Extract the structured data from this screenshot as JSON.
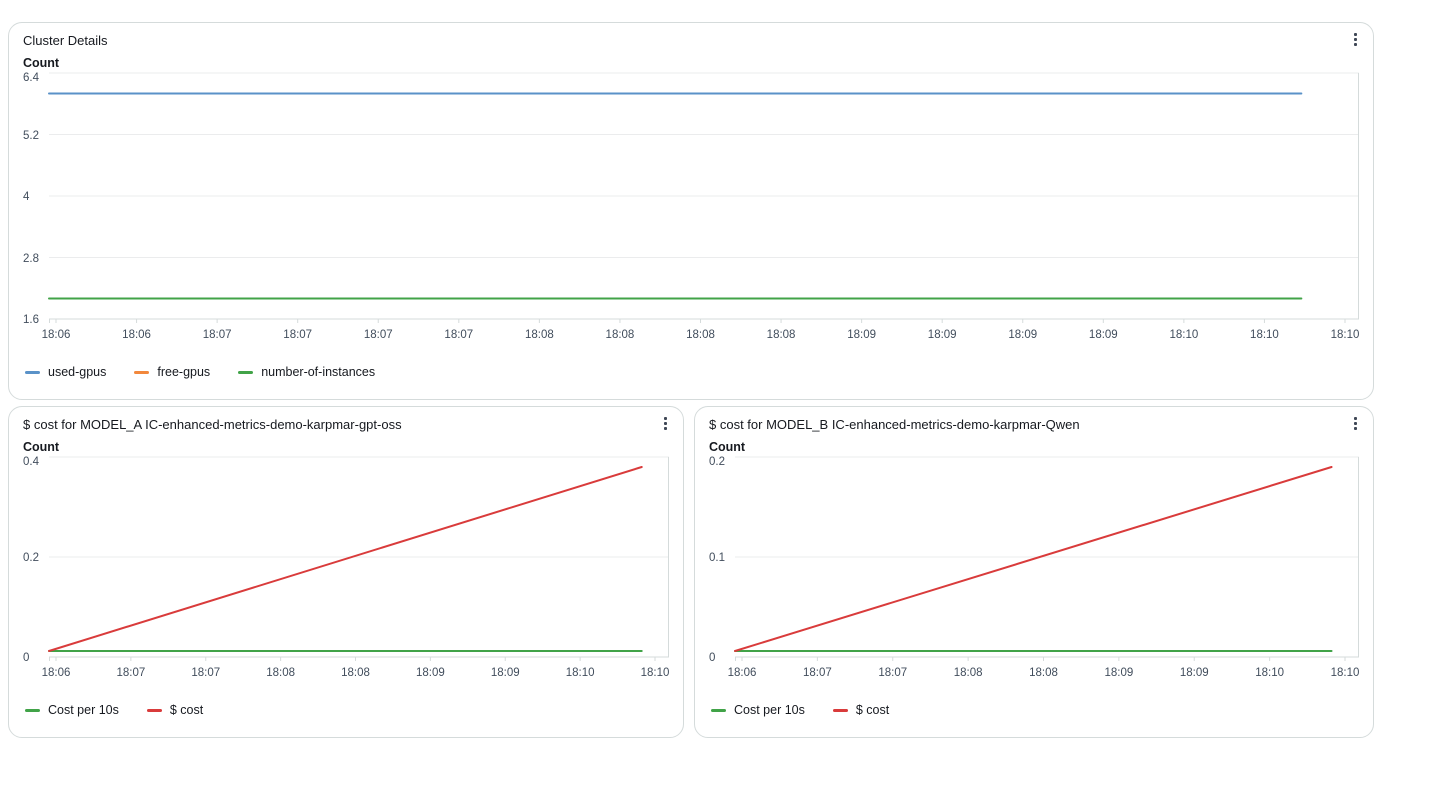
{
  "colors": {
    "blue": "#5A92C8",
    "orange": "#F2883C",
    "green": "#41A348",
    "red": "#D93B3B",
    "grid": "#ebeced",
    "axis": "#d5dbdb",
    "panel_border": "#d5dbdb",
    "title_text": "#16191f",
    "tick_text": "#414d5c"
  },
  "menu_icon": "vertical-ellipsis",
  "chart_data": [
    {
      "type": "line",
      "title": "Cluster Details",
      "ylabel": "Count",
      "ylim": [
        1.6,
        6.4
      ],
      "yticks": [
        "6.4",
        "5.2",
        "4",
        "2.8",
        "1.6"
      ],
      "xticks": [
        "18:06",
        "18:06",
        "18:07",
        "18:07",
        "18:07",
        "18:07",
        "18:08",
        "18:08",
        "18:08",
        "18:08",
        "18:09",
        "18:09",
        "18:09",
        "18:09",
        "18:10",
        "18:10",
        "18:10"
      ],
      "grid": "horizontal",
      "legend_position": "bottom-left",
      "series": [
        {
          "name": "used-gpus",
          "color": "#5A92C8",
          "value": 6,
          "points": [
            [
              0,
              6
            ],
            [
              0.956,
              6
            ]
          ]
        },
        {
          "name": "free-gpus",
          "color": "#F2883C",
          "visible": false,
          "points": []
        },
        {
          "name": "number-of-instances",
          "color": "#41A348",
          "value": 2,
          "points": [
            [
              0,
              2
            ],
            [
              0.956,
              2
            ]
          ]
        }
      ]
    },
    {
      "type": "line",
      "title": "$ cost for MODEL_A IC-enhanced-metrics-demo-karpmar-gpt-oss",
      "ylabel": "Count",
      "ylim": [
        0,
        0.4
      ],
      "yticks": [
        "0.4",
        "0.2",
        "0"
      ],
      "xticks": [
        "18:06",
        "18:07",
        "18:07",
        "18:08",
        "18:08",
        "18:09",
        "18:09",
        "18:10",
        "18:10"
      ],
      "grid": "horizontal",
      "legend_position": "bottom-left",
      "series": [
        {
          "name": "Cost per 10s",
          "color": "#41A348",
          "value": 0.012,
          "points": [
            [
              0,
              0.012
            ],
            [
              0.956,
              0.012
            ]
          ]
        },
        {
          "name": "$ cost",
          "color": "#D93B3B",
          "trend": "rising",
          "points": [
            [
              0,
              0.012
            ],
            [
              0.956,
              0.38
            ]
          ]
        }
      ]
    },
    {
      "type": "line",
      "title": "$ cost for MODEL_B IC-enhanced-metrics-demo-karpmar-Qwen",
      "ylabel": "Count",
      "ylim": [
        0,
        0.2
      ],
      "yticks": [
        "0.2",
        "0.1",
        "0"
      ],
      "xticks": [
        "18:06",
        "18:07",
        "18:07",
        "18:08",
        "18:08",
        "18:09",
        "18:09",
        "18:10",
        "18:10"
      ],
      "grid": "horizontal",
      "legend_position": "bottom-left",
      "series": [
        {
          "name": "Cost per 10s",
          "color": "#41A348",
          "value": 0.006,
          "points": [
            [
              0,
              0.006
            ],
            [
              0.956,
              0.006
            ]
          ]
        },
        {
          "name": "$ cost",
          "color": "#D93B3B",
          "trend": "rising",
          "points": [
            [
              0,
              0.006
            ],
            [
              0.956,
              0.19
            ]
          ]
        }
      ]
    }
  ]
}
